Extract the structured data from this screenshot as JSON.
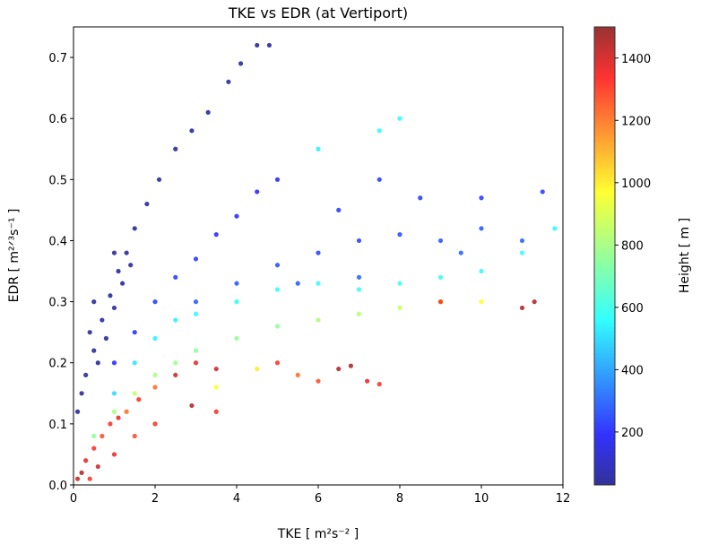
{
  "chart_data": {
    "type": "scatter",
    "title": "TKE vs EDR (at Vertiport)",
    "xlabel": "TKE [ m²s⁻² ]",
    "ylabel": "EDR [ m²ᐟ³s⁻¹ ]",
    "xlim": [
      0,
      12
    ],
    "ylim": [
      0,
      0.75
    ],
    "xticks": [
      "0",
      "2",
      "4",
      "6",
      "8",
      "10",
      "12"
    ],
    "yticks": [
      "0.0",
      "0.1",
      "0.2",
      "0.3",
      "0.4",
      "0.5",
      "0.6",
      "0.7"
    ],
    "grid": false,
    "colorbar": {
      "label": "Height [ m ]",
      "range": [
        30,
        1500
      ],
      "colormap": "jet",
      "ticks": [
        "200",
        "400",
        "600",
        "800",
        "1000",
        "1200",
        "1400"
      ]
    },
    "point_fields": [
      "tke",
      "edr",
      "height"
    ],
    "points": [
      [
        0.1,
        0.12,
        40
      ],
      [
        0.2,
        0.15,
        40
      ],
      [
        0.3,
        0.18,
        40
      ],
      [
        0.4,
        0.25,
        40
      ],
      [
        0.5,
        0.22,
        40
      ],
      [
        0.5,
        0.3,
        40
      ],
      [
        0.6,
        0.2,
        40
      ],
      [
        0.7,
        0.27,
        40
      ],
      [
        0.8,
        0.24,
        40
      ],
      [
        0.9,
        0.31,
        40
      ],
      [
        1.0,
        0.29,
        40
      ],
      [
        1.0,
        0.38,
        40
      ],
      [
        1.1,
        0.35,
        40
      ],
      [
        1.2,
        0.33,
        40
      ],
      [
        1.3,
        0.38,
        40
      ],
      [
        1.4,
        0.36,
        40
      ],
      [
        1.5,
        0.42,
        40
      ],
      [
        1.8,
        0.46,
        40
      ],
      [
        2.1,
        0.5,
        40
      ],
      [
        2.5,
        0.55,
        40
      ],
      [
        2.9,
        0.58,
        40
      ],
      [
        3.3,
        0.61,
        40
      ],
      [
        3.8,
        0.66,
        40
      ],
      [
        4.1,
        0.69,
        40
      ],
      [
        4.5,
        0.72,
        40
      ],
      [
        4.8,
        0.72,
        40
      ],
      [
        1.0,
        0.2,
        220
      ],
      [
        1.5,
        0.25,
        220
      ],
      [
        2.0,
        0.3,
        250
      ],
      [
        2.5,
        0.34,
        250
      ],
      [
        3.0,
        0.37,
        250
      ],
      [
        3.5,
        0.41,
        220
      ],
      [
        4.0,
        0.44,
        200
      ],
      [
        4.5,
        0.48,
        200
      ],
      [
        5.0,
        0.5,
        200
      ],
      [
        3.0,
        0.3,
        300
      ],
      [
        4.0,
        0.33,
        300
      ],
      [
        5.0,
        0.36,
        280
      ],
      [
        5.5,
        0.33,
        300
      ],
      [
        6.0,
        0.38,
        260
      ],
      [
        6.5,
        0.45,
        250
      ],
      [
        7.0,
        0.4,
        260
      ],
      [
        7.0,
        0.34,
        320
      ],
      [
        7.5,
        0.5,
        250
      ],
      [
        8.0,
        0.41,
        280
      ],
      [
        8.5,
        0.47,
        250
      ],
      [
        9.0,
        0.4,
        300
      ],
      [
        9.5,
        0.38,
        320
      ],
      [
        10.0,
        0.42,
        300
      ],
      [
        10.0,
        0.47,
        250
      ],
      [
        11.0,
        0.4,
        320
      ],
      [
        11.5,
        0.48,
        250
      ],
      [
        1.0,
        0.15,
        520
      ],
      [
        1.5,
        0.2,
        540
      ],
      [
        2.0,
        0.24,
        560
      ],
      [
        2.5,
        0.27,
        560
      ],
      [
        3.0,
        0.28,
        580
      ],
      [
        4.0,
        0.3,
        580
      ],
      [
        5.0,
        0.32,
        600
      ],
      [
        6.0,
        0.33,
        600
      ],
      [
        6.0,
        0.55,
        560
      ],
      [
        7.0,
        0.32,
        600
      ],
      [
        7.5,
        0.58,
        580
      ],
      [
        8.0,
        0.33,
        620
      ],
      [
        8.0,
        0.6,
        580
      ],
      [
        9.0,
        0.34,
        600
      ],
      [
        10.0,
        0.35,
        600
      ],
      [
        11.0,
        0.38,
        600
      ],
      [
        11.8,
        0.42,
        580
      ],
      [
        0.5,
        0.08,
        750
      ],
      [
        1.0,
        0.12,
        800
      ],
      [
        1.5,
        0.15,
        850
      ],
      [
        2.0,
        0.18,
        800
      ],
      [
        2.5,
        0.2,
        780
      ],
      [
        3.0,
        0.22,
        750
      ],
      [
        3.5,
        0.16,
        950
      ],
      [
        4.0,
        0.24,
        760
      ],
      [
        4.5,
        0.19,
        980
      ],
      [
        5.0,
        0.26,
        760
      ],
      [
        6.0,
        0.27,
        800
      ],
      [
        7.0,
        0.28,
        820
      ],
      [
        8.0,
        0.29,
        850
      ],
      [
        9.0,
        0.3,
        900
      ],
      [
        10.0,
        0.3,
        950
      ],
      [
        0.1,
        0.01,
        1400
      ],
      [
        0.2,
        0.02,
        1450
      ],
      [
        0.3,
        0.04,
        1350
      ],
      [
        0.4,
        0.01,
        1300
      ],
      [
        0.5,
        0.06,
        1300
      ],
      [
        0.6,
        0.03,
        1400
      ],
      [
        0.7,
        0.08,
        1250
      ],
      [
        0.9,
        0.1,
        1300
      ],
      [
        1.0,
        0.05,
        1350
      ],
      [
        1.1,
        0.11,
        1350
      ],
      [
        1.3,
        0.12,
        1200
      ],
      [
        1.5,
        0.08,
        1250
      ],
      [
        1.6,
        0.14,
        1300
      ],
      [
        2.0,
        0.16,
        1200
      ],
      [
        2.0,
        0.1,
        1300
      ],
      [
        2.5,
        0.18,
        1400
      ],
      [
        2.9,
        0.13,
        1450
      ],
      [
        3.0,
        0.2,
        1350
      ],
      [
        3.5,
        0.19,
        1400
      ],
      [
        3.5,
        0.12,
        1300
      ],
      [
        5.0,
        0.2,
        1300
      ],
      [
        5.5,
        0.18,
        1200
      ],
      [
        6.0,
        0.17,
        1250
      ],
      [
        6.5,
        0.19,
        1450
      ],
      [
        6.8,
        0.195,
        1450
      ],
      [
        7.2,
        0.17,
        1350
      ],
      [
        7.5,
        0.165,
        1300
      ],
      [
        9.0,
        0.3,
        1300
      ],
      [
        11.0,
        0.29,
        1450
      ],
      [
        11.3,
        0.3,
        1450
      ]
    ]
  }
}
